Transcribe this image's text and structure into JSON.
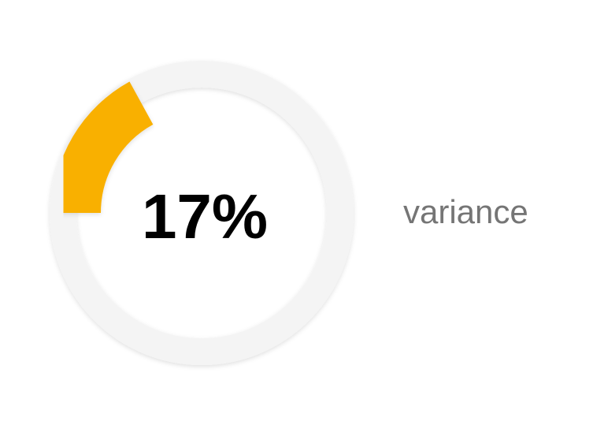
{
  "chart_data": {
    "type": "gauge",
    "value": 17,
    "min": 0,
    "max": 100,
    "value_label": "17%",
    "label": "variance",
    "colors": {
      "fill": "#F9B000",
      "track": "#F4F4F4",
      "value_text": "#000000",
      "label_text": "#757575"
    }
  }
}
